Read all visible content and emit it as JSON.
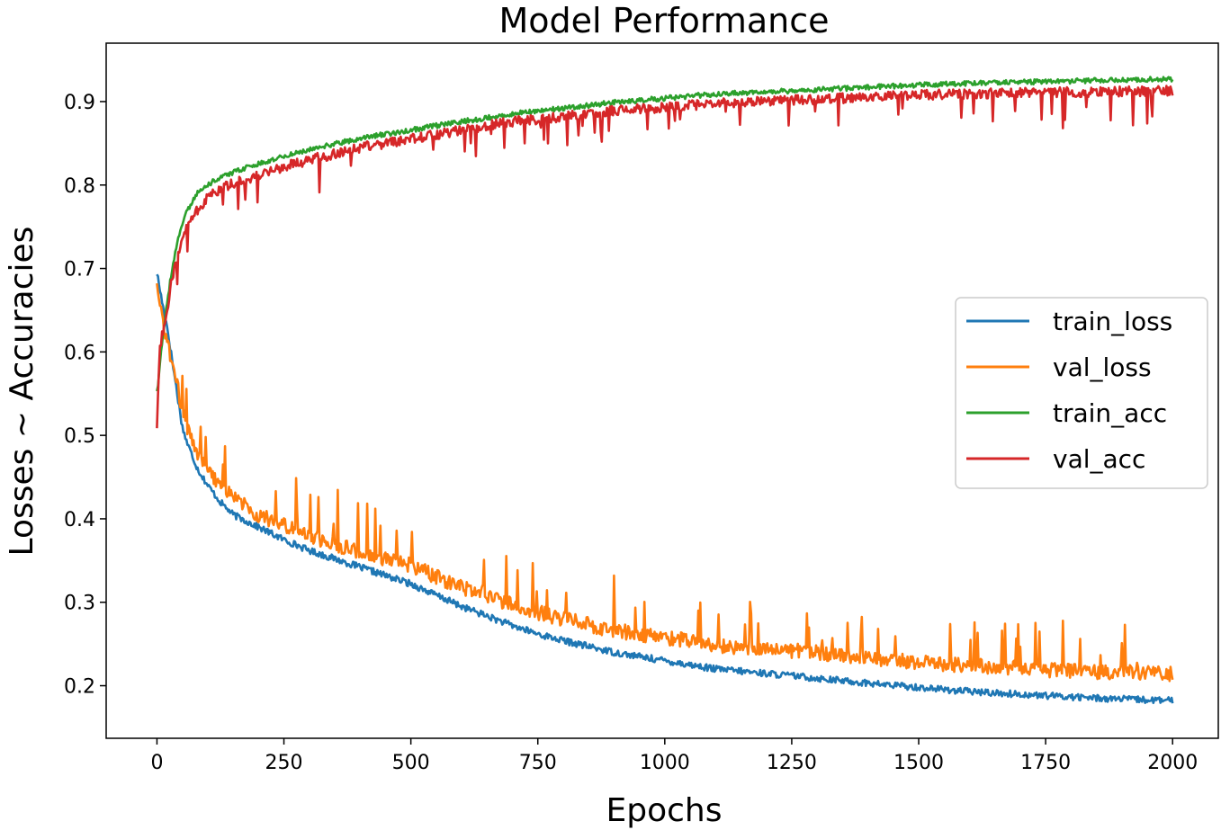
{
  "chart_data": {
    "type": "line",
    "title": "Model Performance",
    "xlabel": "Epochs",
    "ylabel": "Losses ~ Accuracies",
    "xlim": [
      -100,
      2090
    ],
    "ylim": [
      0.137,
      0.97
    ],
    "xticks": [
      0,
      250,
      500,
      750,
      1000,
      1250,
      1500,
      1750,
      2000
    ],
    "yticks": [
      0.2,
      0.3,
      0.4,
      0.5,
      0.6,
      0.7,
      0.8,
      0.9
    ],
    "x_range": [
      0,
      2000
    ],
    "grid": false,
    "legend_position": "center-right",
    "series": [
      {
        "name": "train_loss",
        "color": "#1f77b4",
        "noise": 0.004,
        "points": [
          [
            0,
            0.695
          ],
          [
            10,
            0.66
          ],
          [
            20,
            0.63
          ],
          [
            30,
            0.59
          ],
          [
            40,
            0.55
          ],
          [
            50,
            0.51
          ],
          [
            60,
            0.49
          ],
          [
            80,
            0.46
          ],
          [
            100,
            0.44
          ],
          [
            125,
            0.42
          ],
          [
            150,
            0.405
          ],
          [
            200,
            0.39
          ],
          [
            250,
            0.375
          ],
          [
            300,
            0.362
          ],
          [
            400,
            0.342
          ],
          [
            500,
            0.322
          ],
          [
            600,
            0.295
          ],
          [
            700,
            0.272
          ],
          [
            750,
            0.262
          ],
          [
            800,
            0.254
          ],
          [
            900,
            0.24
          ],
          [
            1000,
            0.23
          ],
          [
            1100,
            0.22
          ],
          [
            1250,
            0.212
          ],
          [
            1400,
            0.203
          ],
          [
            1500,
            0.198
          ],
          [
            1600,
            0.193
          ],
          [
            1750,
            0.188
          ],
          [
            1900,
            0.184
          ],
          [
            2000,
            0.182
          ]
        ]
      },
      {
        "name": "val_loss",
        "color": "#ff7f0e",
        "noise": 0.009,
        "points": [
          [
            0,
            0.68
          ],
          [
            10,
            0.64
          ],
          [
            20,
            0.61
          ],
          [
            30,
            0.585
          ],
          [
            40,
            0.56
          ],
          [
            50,
            0.53
          ],
          [
            60,
            0.51
          ],
          [
            80,
            0.48
          ],
          [
            100,
            0.458
          ],
          [
            125,
            0.44
          ],
          [
            150,
            0.425
          ],
          [
            200,
            0.405
          ],
          [
            250,
            0.392
          ],
          [
            300,
            0.38
          ],
          [
            400,
            0.36
          ],
          [
            500,
            0.344
          ],
          [
            600,
            0.318
          ],
          [
            700,
            0.297
          ],
          [
            750,
            0.288
          ],
          [
            800,
            0.28
          ],
          [
            900,
            0.266
          ],
          [
            1000,
            0.258
          ],
          [
            1100,
            0.248
          ],
          [
            1250,
            0.242
          ],
          [
            1400,
            0.234
          ],
          [
            1500,
            0.228
          ],
          [
            1600,
            0.224
          ],
          [
            1750,
            0.219
          ],
          [
            1900,
            0.216
          ],
          [
            2000,
            0.214
          ]
        ]
      },
      {
        "name": "train_acc",
        "color": "#2ca02c",
        "noise": 0.003,
        "points": [
          [
            0,
            0.55
          ],
          [
            10,
            0.61
          ],
          [
            20,
            0.66
          ],
          [
            30,
            0.7
          ],
          [
            40,
            0.73
          ],
          [
            50,
            0.755
          ],
          [
            60,
            0.77
          ],
          [
            80,
            0.79
          ],
          [
            100,
            0.8
          ],
          [
            125,
            0.81
          ],
          [
            150,
            0.815
          ],
          [
            200,
            0.826
          ],
          [
            250,
            0.834
          ],
          [
            300,
            0.842
          ],
          [
            400,
            0.856
          ],
          [
            500,
            0.866
          ],
          [
            600,
            0.876
          ],
          [
            700,
            0.885
          ],
          [
            750,
            0.889
          ],
          [
            800,
            0.892
          ],
          [
            900,
            0.899
          ],
          [
            1000,
            0.904
          ],
          [
            1100,
            0.909
          ],
          [
            1250,
            0.913
          ],
          [
            1400,
            0.917
          ],
          [
            1500,
            0.92
          ],
          [
            1600,
            0.922
          ],
          [
            1750,
            0.924
          ],
          [
            1900,
            0.926
          ],
          [
            2000,
            0.927
          ]
        ]
      },
      {
        "name": "val_acc",
        "color": "#d62728",
        "noise": 0.006,
        "points": [
          [
            0,
            0.51
          ],
          [
            5,
            0.6
          ],
          [
            10,
            0.62
          ],
          [
            20,
            0.65
          ],
          [
            30,
            0.69
          ],
          [
            40,
            0.71
          ],
          [
            50,
            0.735
          ],
          [
            60,
            0.75
          ],
          [
            80,
            0.77
          ],
          [
            100,
            0.785
          ],
          [
            125,
            0.795
          ],
          [
            150,
            0.802
          ],
          [
            200,
            0.812
          ],
          [
            250,
            0.822
          ],
          [
            300,
            0.83
          ],
          [
            400,
            0.845
          ],
          [
            500,
            0.855
          ],
          [
            600,
            0.866
          ],
          [
            700,
            0.876
          ],
          [
            750,
            0.879
          ],
          [
            800,
            0.882
          ],
          [
            900,
            0.889
          ],
          [
            1000,
            0.893
          ],
          [
            1100,
            0.898
          ],
          [
            1250,
            0.902
          ],
          [
            1400,
            0.905
          ],
          [
            1500,
            0.908
          ],
          [
            1600,
            0.909
          ],
          [
            1750,
            0.911
          ],
          [
            1900,
            0.912
          ],
          [
            2000,
            0.913
          ]
        ]
      }
    ]
  }
}
